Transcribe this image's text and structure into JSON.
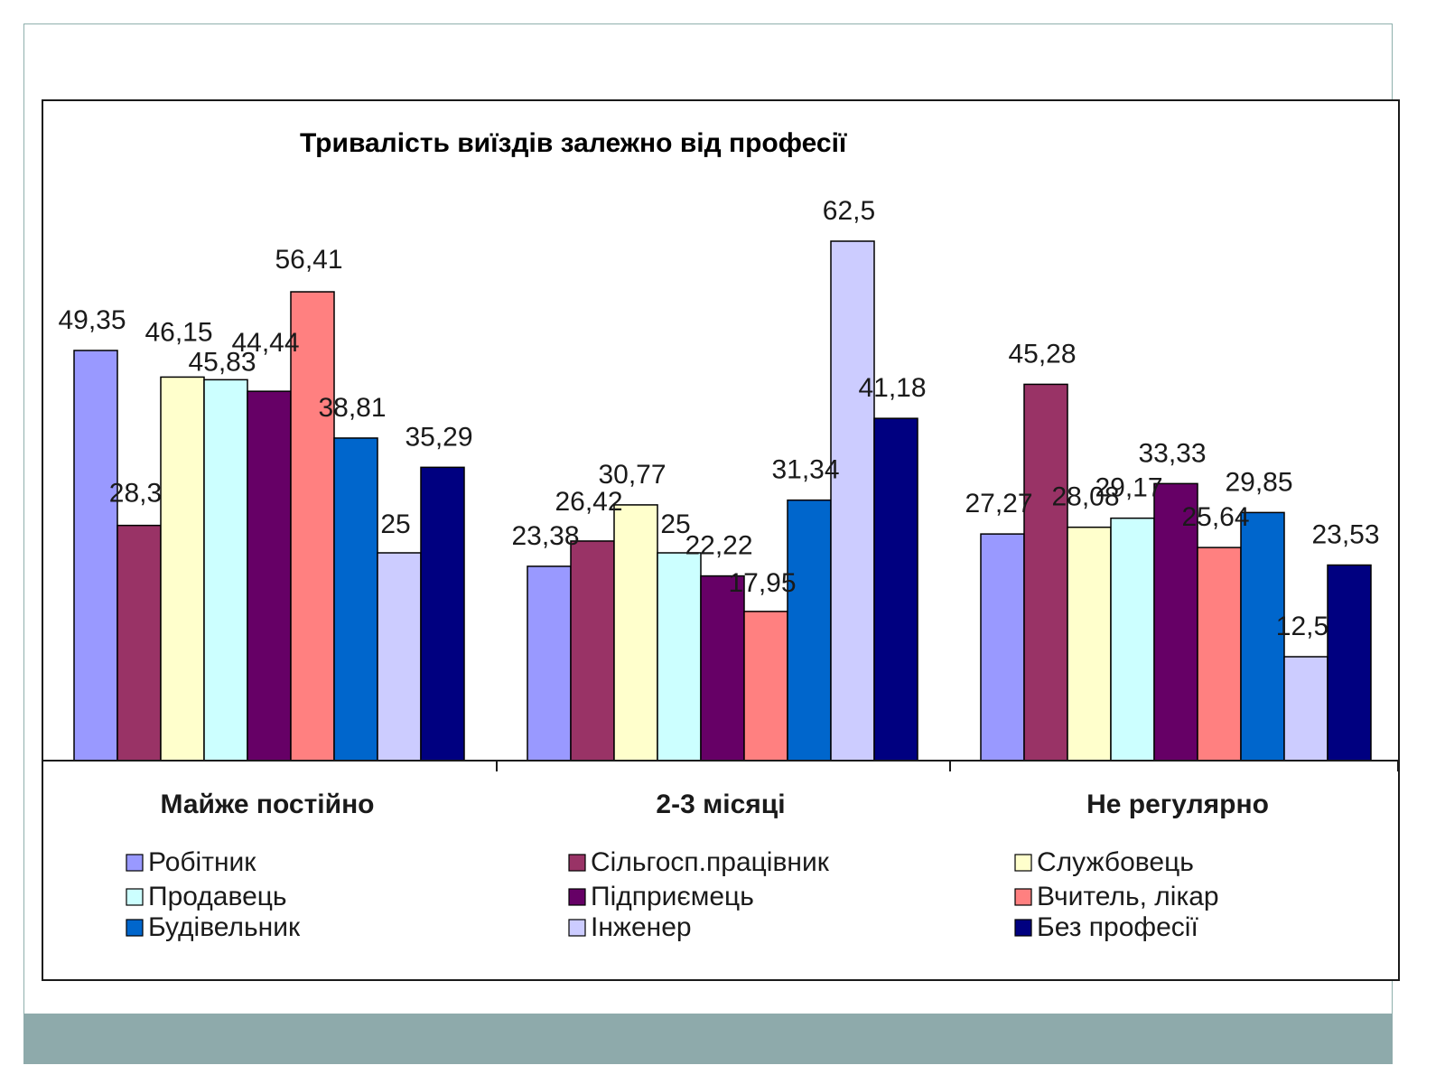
{
  "chart_data": {
    "type": "bar",
    "title": "Тривалість виїздів залежно від професії",
    "categories": [
      "Майже постійно",
      "2-3 місяці",
      "Не регулярно"
    ],
    "series": [
      {
        "name": "Робітник",
        "color": "#9999ff",
        "values": [
          49.35,
          23.38,
          27.27
        ],
        "labels": [
          "49,35",
          "23,38",
          "27,27"
        ]
      },
      {
        "name": "Сільгосп.працівник",
        "color": "#993366",
        "values": [
          28.3,
          26.42,
          45.28
        ],
        "labels": [
          "28,3",
          "26,42",
          "45,28"
        ]
      },
      {
        "name": "Службовець",
        "color": "#ffffcc",
        "values": [
          46.15,
          30.77,
          28.08
        ],
        "labels": [
          "46,15",
          "30,77",
          "28,08"
        ]
      },
      {
        "name": "Продавець",
        "color": "#ccffff",
        "values": [
          45.83,
          25,
          29.17
        ],
        "labels": [
          "45,83",
          "25",
          "29,17"
        ]
      },
      {
        "name": "Підприємець",
        "color": "#660066",
        "values": [
          44.44,
          22.22,
          33.33
        ],
        "labels": [
          "44,44",
          "22,22",
          "33,33"
        ]
      },
      {
        "name": "Вчитель, лікар",
        "color": "#ff8080",
        "values": [
          56.41,
          17.95,
          25.64
        ],
        "labels": [
          "56,41",
          "17,95",
          "25,64"
        ]
      },
      {
        "name": "Будівельник",
        "color": "#0066cc",
        "values": [
          38.81,
          31.34,
          29.85
        ],
        "labels": [
          "38,81",
          "31,34",
          "29,85"
        ]
      },
      {
        "name": "Інженер",
        "color": "#ccccff",
        "values": [
          25,
          62.5,
          12.5
        ],
        "labels": [
          "25",
          "62,5",
          "12,5"
        ]
      },
      {
        "name": "Без професії",
        "color": "#000080",
        "values": [
          35.29,
          41.18,
          23.53
        ],
        "labels": [
          "35,29",
          "41,18",
          "23,53"
        ]
      }
    ],
    "legend_position": "bottom",
    "grid": false,
    "ylim": [
      0,
      70
    ]
  }
}
